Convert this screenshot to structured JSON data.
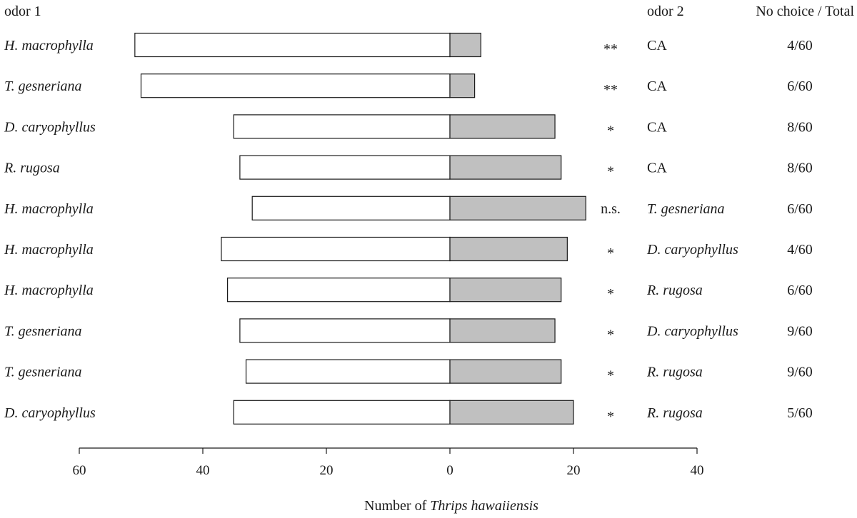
{
  "chart_data": {
    "type": "bar",
    "orientation": "horizontal",
    "layout": "diverging",
    "headers": {
      "odor1": "odor 1",
      "odor2": "odor 2",
      "nochoice": "No choice / Total"
    },
    "xlabel_prefix": "Number of ",
    "xlabel_italic": "Thrips hawaiiensis",
    "xlim": [
      -60,
      40
    ],
    "ticks": [
      {
        "value": -60,
        "label": "60"
      },
      {
        "value": -40,
        "label": "40"
      },
      {
        "value": -20,
        "label": "20"
      },
      {
        "value": 0,
        "label": "0"
      },
      {
        "value": 20,
        "label": "20"
      },
      {
        "value": 40,
        "label": "40"
      }
    ],
    "colors": {
      "odor1_bar": "#ffffff",
      "odor2_bar": "#c0c0c0",
      "edge": "#1a1a1a"
    },
    "rows": [
      {
        "odor1": "H. macrophylla",
        "odor1_value": 51,
        "odor2": "CA",
        "odor2_value": 5,
        "sig": "**",
        "nochoice": "4/60"
      },
      {
        "odor1": "T. gesneriana",
        "odor1_value": 50,
        "odor2": "CA",
        "odor2_value": 4,
        "sig": "**",
        "nochoice": "6/60"
      },
      {
        "odor1": "D. caryophyllus",
        "odor1_value": 35,
        "odor2": "CA",
        "odor2_value": 17,
        "sig": "*",
        "nochoice": "8/60"
      },
      {
        "odor1": "R. rugosa",
        "odor1_value": 34,
        "odor2": "CA",
        "odor2_value": 18,
        "sig": "*",
        "nochoice": "8/60"
      },
      {
        "odor1": "H. macrophylla",
        "odor1_value": 32,
        "odor2": "T. gesneriana",
        "odor2_value": 22,
        "sig": "n.s.",
        "nochoice": "6/60"
      },
      {
        "odor1": "H. macrophylla",
        "odor1_value": 37,
        "odor2": "D. caryophyllus",
        "odor2_value": 19,
        "sig": "*",
        "nochoice": "4/60"
      },
      {
        "odor1": "H. macrophylla",
        "odor1_value": 36,
        "odor2": "R. rugosa",
        "odor2_value": 18,
        "sig": "*",
        "nochoice": "6/60"
      },
      {
        "odor1": "T. gesneriana",
        "odor1_value": 34,
        "odor2": "D. caryophyllus",
        "odor2_value": 17,
        "sig": "*",
        "nochoice": "9/60"
      },
      {
        "odor1": "T. gesneriana",
        "odor1_value": 33,
        "odor2": "R. rugosa",
        "odor2_value": 18,
        "sig": "*",
        "nochoice": "9/60"
      },
      {
        "odor1": "D. caryophyllus",
        "odor1_value": 35,
        "odor2": "R. rugosa",
        "odor2_value": 20,
        "sig": "*",
        "nochoice": "5/60"
      }
    ]
  }
}
